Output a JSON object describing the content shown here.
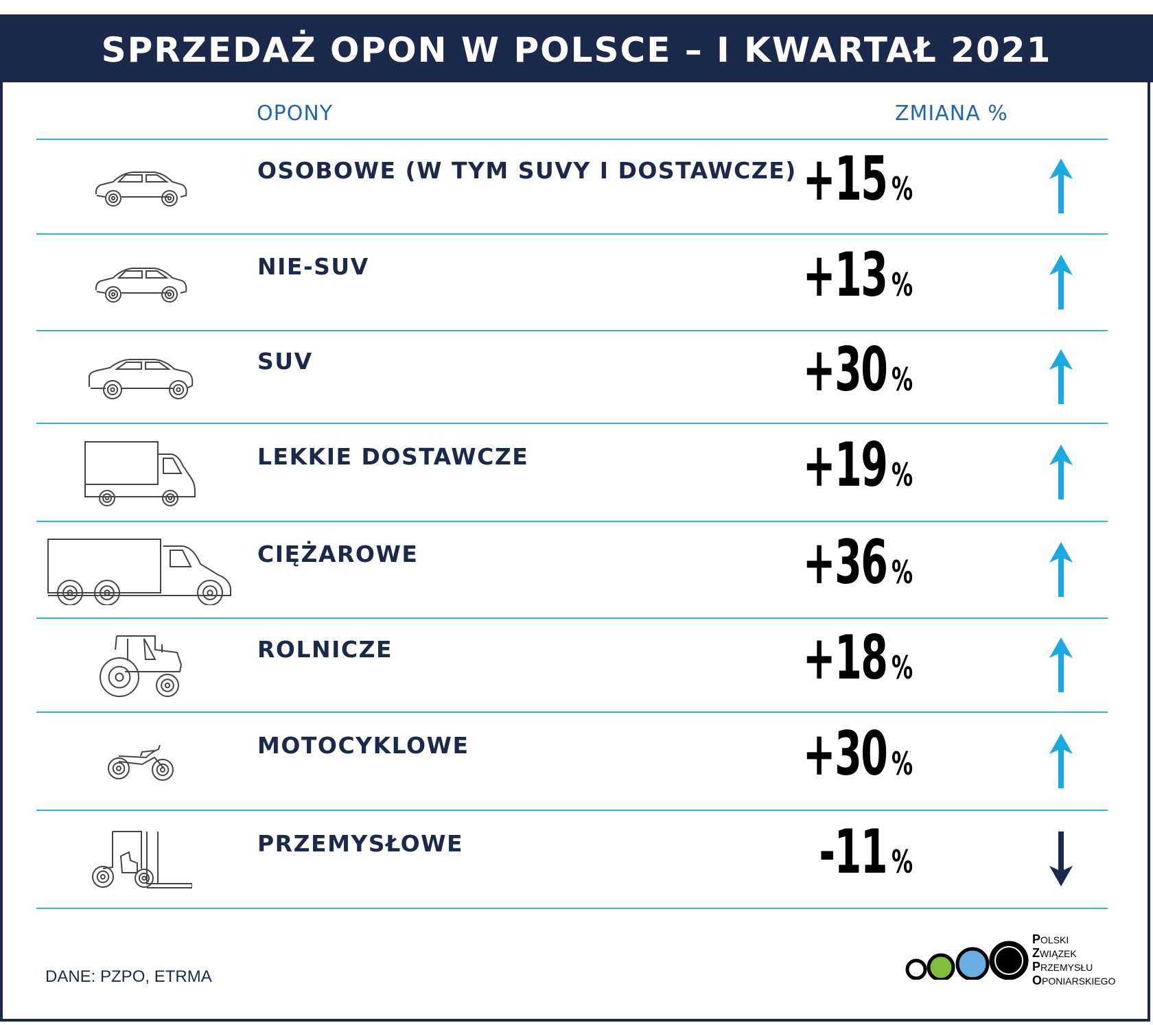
{
  "title": "SPRZEDAŻ OPON W POLSCE – I KWARTAŁ 2021",
  "col_opony": "OPONY",
  "col_zmiana": "ZMIANA %",
  "source": "DANE: PZPO, ETRMA",
  "logo_lines": [
    {
      "cap": "P",
      "rest": "OLSKI"
    },
    {
      "cap": "Z",
      "rest": "WIĄZEK"
    },
    {
      "cap": "P",
      "rest": "RZEMYSŁU"
    },
    {
      "cap": "O",
      "rest": "PONIARSKIEGO"
    }
  ],
  "colors": {
    "navy": "#1b2a4a",
    "accent_line": "#29b6e8",
    "up_arrow": "#1aa9e0",
    "down_arrow": "#1b2a4a",
    "logo_green": "#7fbf3a",
    "logo_blue": "#6aaee0"
  },
  "chart_data": {
    "type": "table",
    "title": "SPRZEDAŻ OPON W POLSCE – I KWARTAŁ 2021",
    "columns": [
      "OPONY",
      "ZMIANA %"
    ],
    "rows": [
      {
        "category": "OSOBOWE (W TYM SUVY I DOSTAWCZE)",
        "icon": "car-icon",
        "value": 15,
        "label": "+15",
        "unit": "%",
        "direction": "up"
      },
      {
        "category": "NIE-SUV",
        "icon": "car-icon",
        "value": 13,
        "label": "+13",
        "unit": "%",
        "direction": "up"
      },
      {
        "category": "SUV",
        "icon": "suv-icon",
        "value": 30,
        "label": "+30",
        "unit": "%",
        "direction": "up"
      },
      {
        "category": "LEKKIE DOSTAWCZE",
        "icon": "van-icon",
        "value": 19,
        "label": "+19",
        "unit": "%",
        "direction": "up"
      },
      {
        "category": "CIĘŻAROWE",
        "icon": "truck-icon",
        "value": 36,
        "label": "+36",
        "unit": "%",
        "direction": "up"
      },
      {
        "category": "ROLNICZE",
        "icon": "tractor-icon",
        "value": 18,
        "label": "+18",
        "unit": "%",
        "direction": "up"
      },
      {
        "category": "MOTOCYKLOWE",
        "icon": "motorcycle-icon",
        "value": 30,
        "label": "+30",
        "unit": "%",
        "direction": "up"
      },
      {
        "category": "PRZEMYSŁOWE",
        "icon": "forklift-icon",
        "value": -11,
        "label": "-11",
        "unit": "%",
        "direction": "down"
      }
    ]
  }
}
